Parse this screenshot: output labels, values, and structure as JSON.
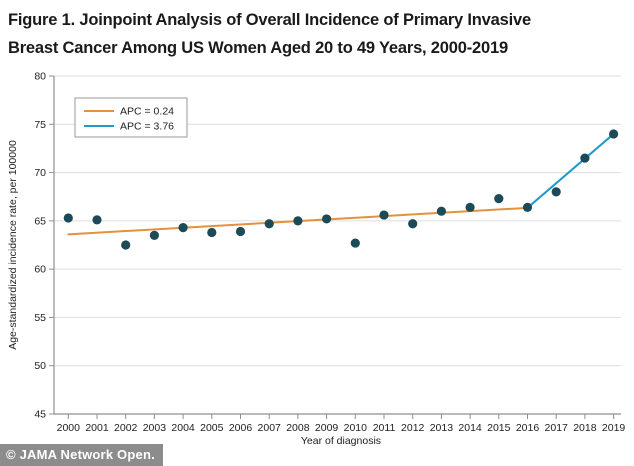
{
  "figure": {
    "title_line1": "Figure 1.  Joinpoint Analysis of Overall Incidence of Primary Invasive",
    "title_line2": "Breast Cancer Among US Women Aged 20 to 49 Years, 2000-2019"
  },
  "footer": {
    "text": "© JAMA Network Open."
  },
  "colors": {
    "trend1": "#E2913C",
    "trend2": "#1E9BCE",
    "point": "#1C4A59",
    "grid": "#DEDEDE",
    "axis": "#8F8F8F",
    "tick_text": "#222222",
    "axis_label_text": "#222222",
    "legend_border": "#9A9A9A",
    "footer_bg": "#8C8C8C",
    "footer_text": "#FFFFFF"
  },
  "chart_data": {
    "type": "scatter",
    "title": "",
    "xlabel": "Year of diagnosis",
    "ylabel": "Age-standardized incidence rate, per 100000",
    "ylim": [
      45,
      80
    ],
    "ytick_step": 5,
    "grid": true,
    "legend_position": "upper-left",
    "x": [
      2000,
      2001,
      2002,
      2003,
      2004,
      2005,
      2006,
      2007,
      2008,
      2009,
      2010,
      2011,
      2012,
      2013,
      2014,
      2015,
      2016,
      2017,
      2018,
      2019
    ],
    "values": [
      65.3,
      65.1,
      62.5,
      63.5,
      64.3,
      63.8,
      63.9,
      64.7,
      65.0,
      65.2,
      62.7,
      65.6,
      64.7,
      66.0,
      66.4,
      67.3,
      66.4,
      68.0,
      71.5,
      74.0
    ],
    "legend": [
      {
        "label": "APC = 0.24",
        "color_key": "trend1"
      },
      {
        "label": "APC = 3.76",
        "color_key": "trend2"
      }
    ],
    "trend_segments": [
      {
        "name": "APC = 0.24",
        "x": [
          2000,
          2016
        ],
        "y": [
          63.6,
          66.35
        ],
        "color_key": "trend1"
      },
      {
        "name": "APC = 3.76",
        "x": [
          2016,
          2019
        ],
        "y": [
          66.35,
          74.0
        ],
        "color_key": "trend2"
      }
    ]
  }
}
